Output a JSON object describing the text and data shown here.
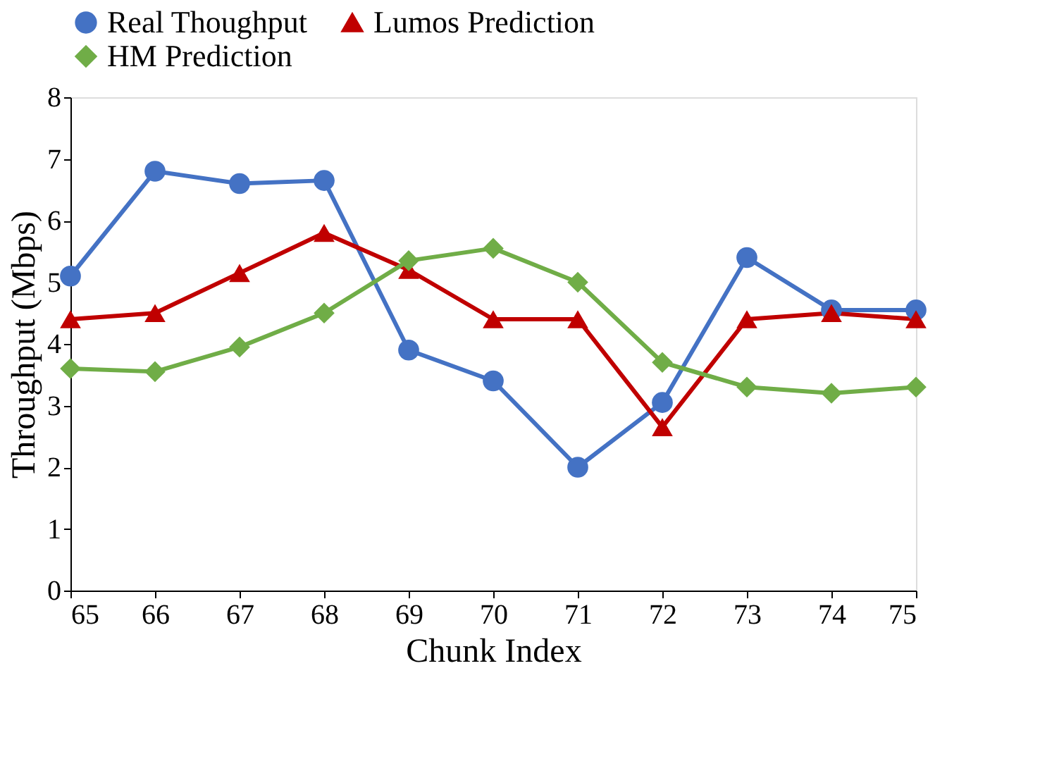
{
  "chart_data": {
    "type": "line",
    "xlabel": "Chunk Index",
    "ylabel": "Throughput (Mbps)",
    "x": [
      65,
      66,
      67,
      68,
      69,
      70,
      71,
      72,
      73,
      74,
      75
    ],
    "series": [
      {
        "name": "Real Thoughput",
        "color": "#4472c4",
        "marker": "circle",
        "values": [
          5.1,
          6.8,
          6.6,
          6.65,
          3.9,
          3.4,
          2.0,
          3.05,
          5.4,
          4.55,
          4.55
        ]
      },
      {
        "name": "Lumos Prediction",
        "color": "#c00000",
        "marker": "triangle",
        "values": [
          4.4,
          4.5,
          5.15,
          5.8,
          5.2,
          4.4,
          4.4,
          2.65,
          4.4,
          4.5,
          4.4
        ]
      },
      {
        "name": "HM Prediction",
        "color": "#70ad47",
        "marker": "diamond",
        "values": [
          3.6,
          3.55,
          3.95,
          4.5,
          5.35,
          5.55,
          5.0,
          3.7,
          3.3,
          3.2,
          3.3
        ]
      }
    ],
    "xlim": [
      65,
      75
    ],
    "xticks": [
      65,
      66,
      67,
      68,
      69,
      70,
      71,
      72,
      73,
      74,
      75
    ],
    "ylim": [
      0,
      8
    ],
    "yticks": [
      0,
      1,
      2,
      3,
      4,
      5,
      6,
      7,
      8
    ],
    "grid": false,
    "legend": "top",
    "line_style": "solid"
  }
}
